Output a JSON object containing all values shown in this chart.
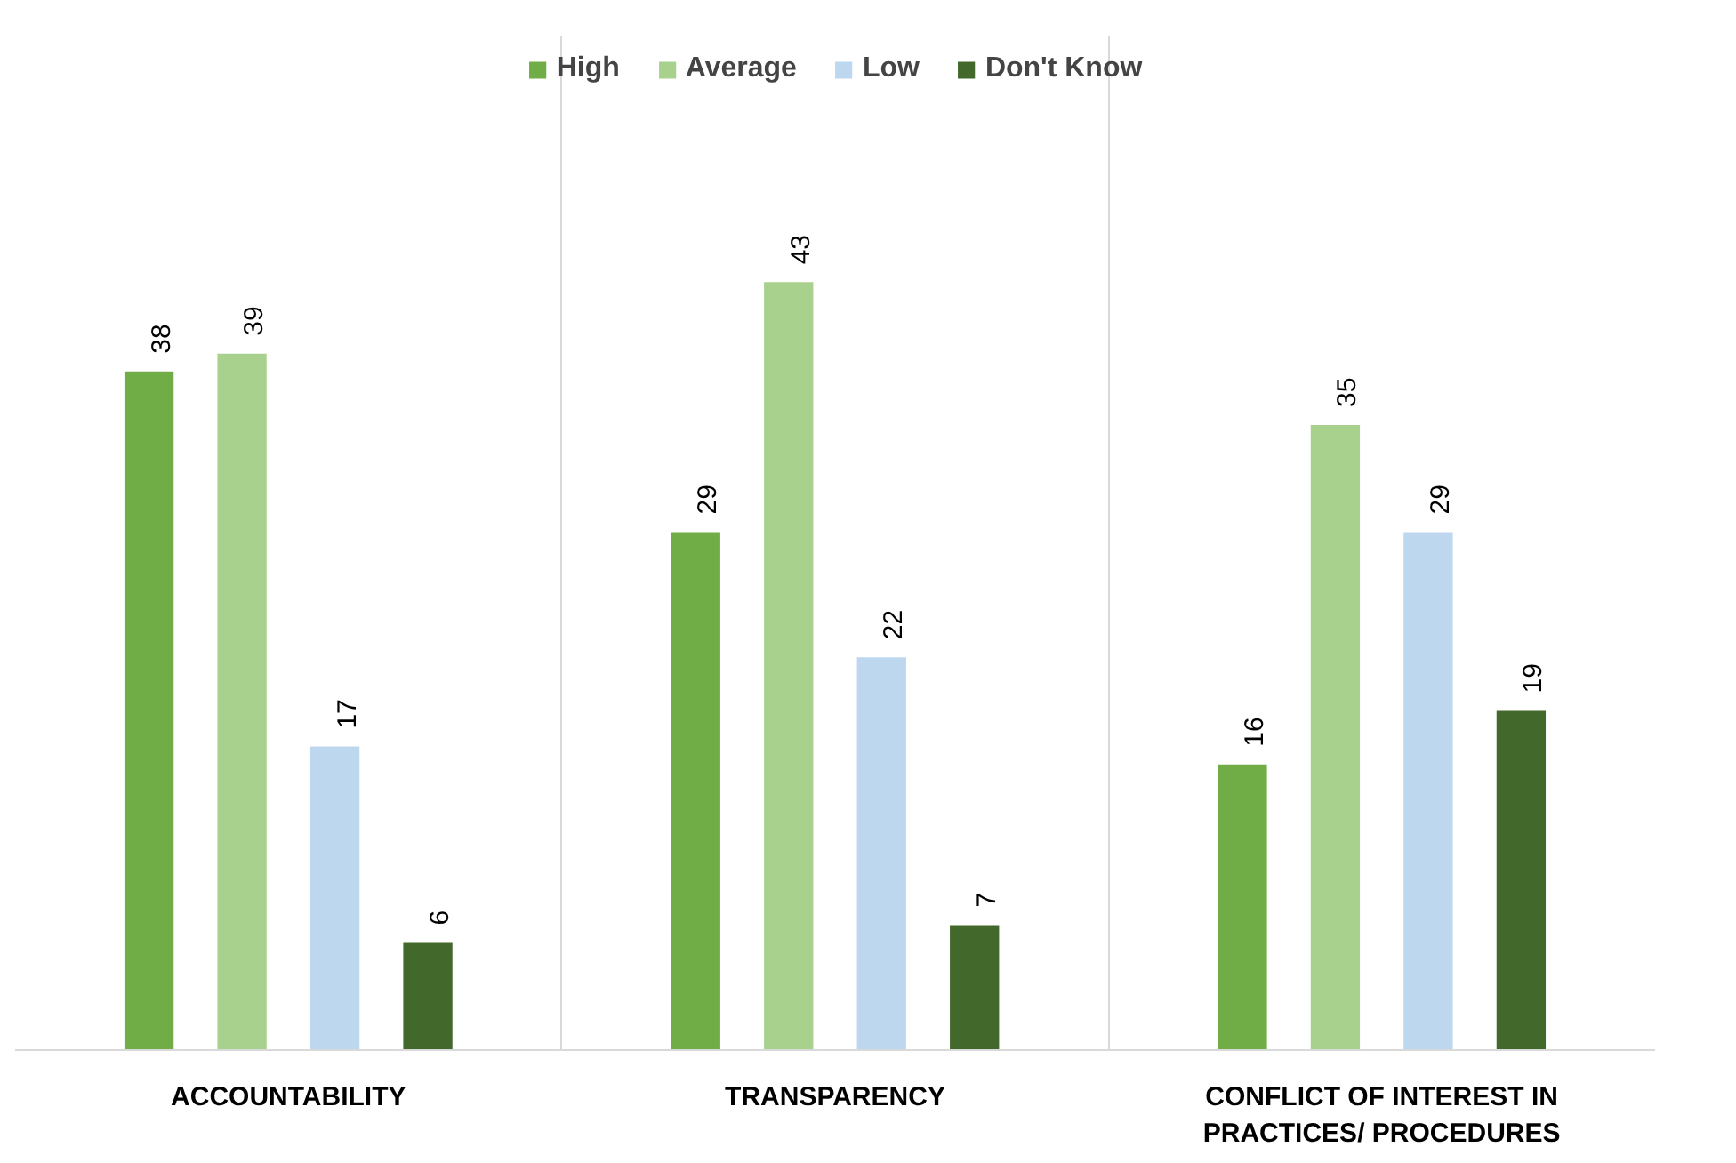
{
  "chart_data": {
    "type": "bar",
    "categories": [
      "ACCOUNTABILITY",
      "TRANSPARENCY",
      "CONFLICT OF INTEREST IN PRACTICES/ PROCEDURES"
    ],
    "series": [
      {
        "name": "High",
        "color": "#70ad47",
        "values": [
          38,
          29,
          16
        ]
      },
      {
        "name": "Average",
        "color": "#a9d18e",
        "values": [
          39,
          43,
          35
        ]
      },
      {
        "name": "Low",
        "color": "#bdd7ee",
        "values": [
          17,
          22,
          29
        ]
      },
      {
        "name": "Don't Know",
        "color": "#43682b",
        "values": [
          6,
          7,
          19
        ]
      }
    ],
    "data_labels": true,
    "grid": "x",
    "legend": "top"
  }
}
